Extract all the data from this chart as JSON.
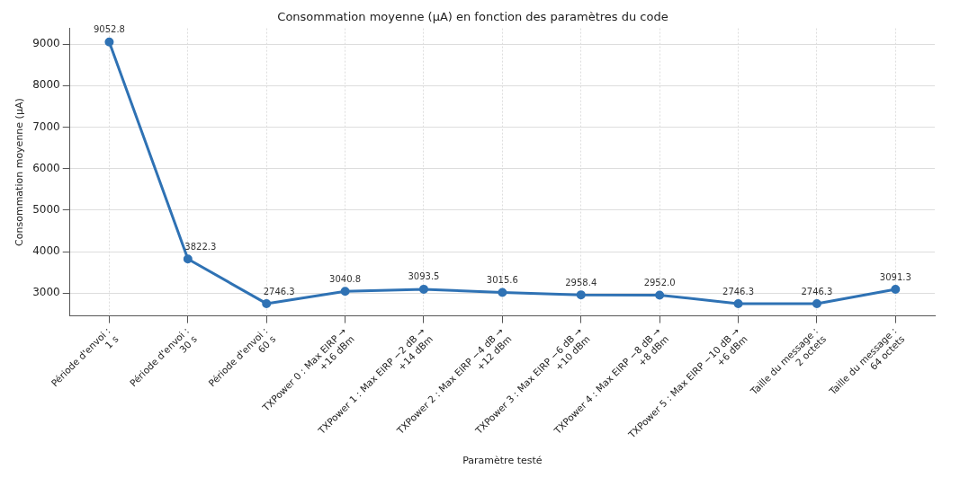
{
  "chart_data": {
    "type": "line",
    "title": "Consommation moyenne (µA) en fonction des paramètres du code",
    "xlabel": "Paramètre testé",
    "ylabel": "Consommation moyenne (µA)",
    "categories": [
      "Période d'envoi :\n1 s",
      "Période d'envoi :\n30 s",
      "Période d'envoi :\n60 s",
      "TXPower 0 : Max EIRP →\n+16 dBm",
      "TXPower 1 : Max EIRP −2 dB →\n+14 dBm",
      "TXPower 2 : Max EIRP −4 dB →\n+12 dBm",
      "TXPower 3 : Max EIRP −6 dB →\n+10 dBm",
      "TXPower 4 : Max EIRP −8 dB →\n+8 dBm",
      "TXPower 5 : Max EIRP −10 dB →\n+6 dBm",
      "Taille du message :\n2 octets",
      "Taille du message :\n64 octets"
    ],
    "series": [
      {
        "color": "#2f72b4",
        "values": [
          9052.8,
          3822.3,
          2746.3,
          3040.8,
          3093.5,
          3015.6,
          2958.4,
          2952,
          2746.3,
          2746.3,
          3091.3
        ],
        "value_labels": [
          "9052.8",
          "3822.3",
          "2746.3",
          "3040.8",
          "3093.5",
          "3015.6",
          "2958.4",
          "2952.0",
          "2746.3",
          "2746.3",
          "3091.3"
        ]
      }
    ],
    "ylim": [
      2450,
      9380
    ],
    "yticks": [
      3000,
      4000,
      5000,
      6000,
      7000,
      8000,
      9000
    ],
    "grid": true,
    "marker": "circle",
    "line_style": "solid",
    "legend": false
  }
}
